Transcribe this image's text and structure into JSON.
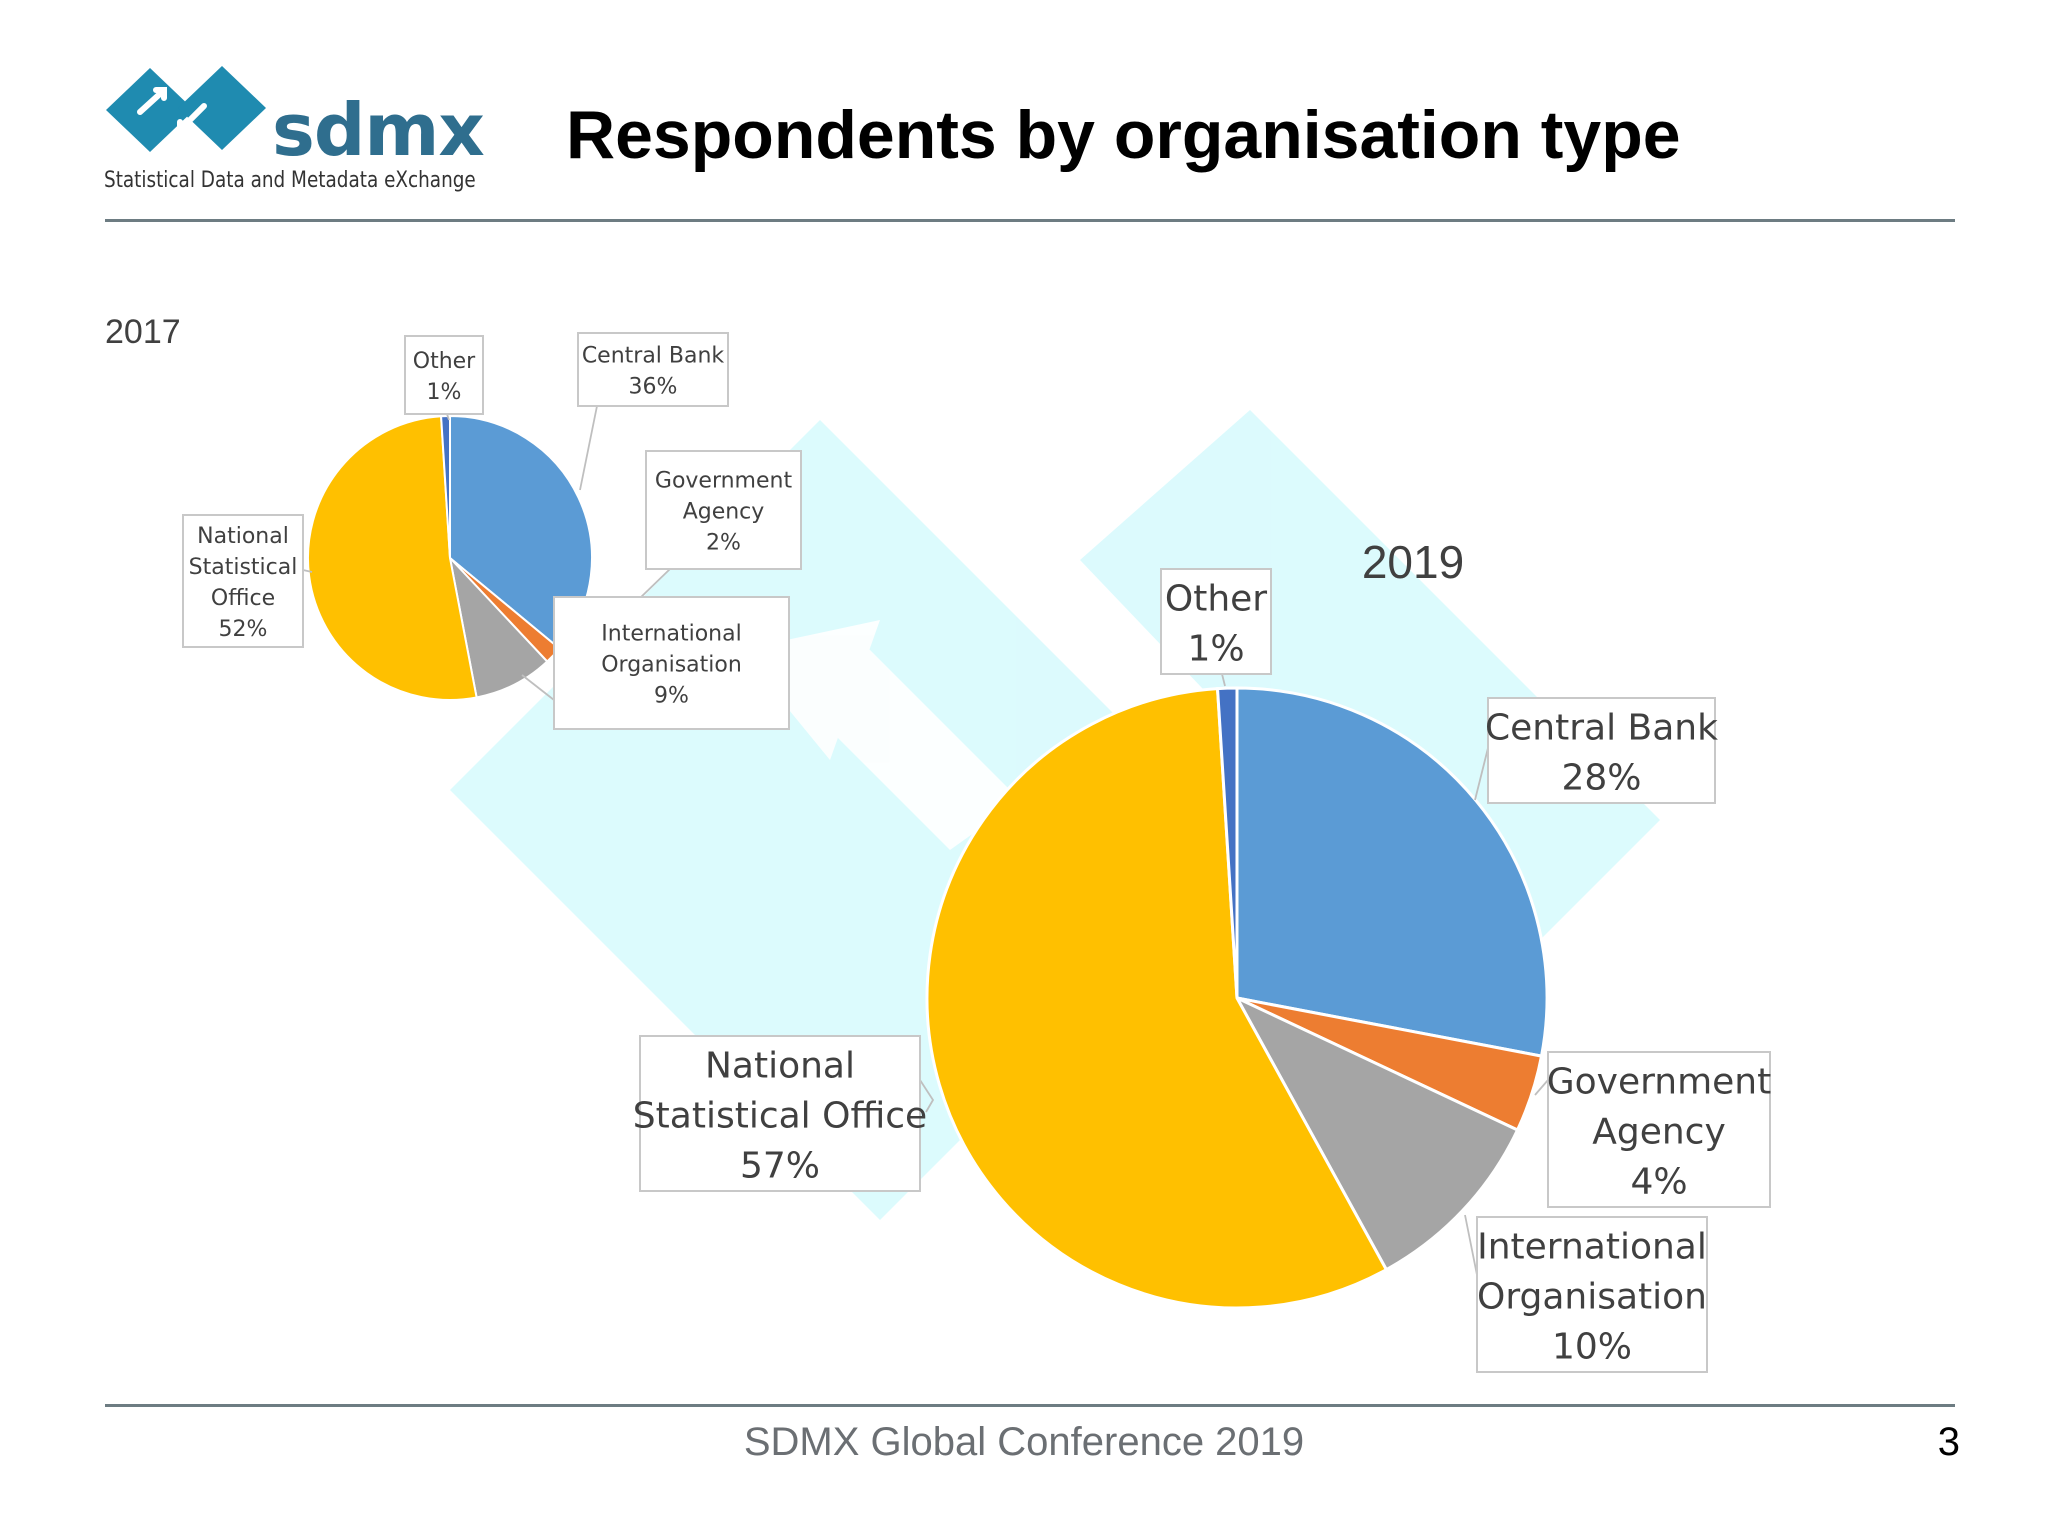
{
  "logo": {
    "name": "sdmx",
    "tagline": "Statistical Data and Metadata eXchange"
  },
  "title": "Respondents by organisation type",
  "footer": {
    "text": "SDMX Global Conference 2019",
    "page_number": "3"
  },
  "colors": {
    "central_bank": "#5b9bd5",
    "government_agency": "#ed7d31",
    "international_organisation": "#a5a5a5",
    "national_statistical_office": "#ffc000",
    "other": "#4472c4",
    "rule": "#6d7c82",
    "watermark": "#d6fafd"
  },
  "chart_data": [
    {
      "type": "pie",
      "title": "2017",
      "slices": [
        {
          "label": [
            "Central Bank"
          ],
          "value": 36,
          "value_label": "36%",
          "color": "#5b9bd5"
        },
        {
          "label": [
            "Government",
            "Agency"
          ],
          "value": 2,
          "value_label": "2%",
          "color": "#ed7d31"
        },
        {
          "label": [
            "International",
            "Organisation"
          ],
          "value": 9,
          "value_label": "9%",
          "color": "#a5a5a5"
        },
        {
          "label": [
            "National",
            "Statistical",
            "Office"
          ],
          "value": 52,
          "value_label": "52%",
          "color": "#ffc000"
        },
        {
          "label": [
            "Other"
          ],
          "value": 1,
          "value_label": "1%",
          "color": "#4472c4"
        }
      ]
    },
    {
      "type": "pie",
      "title": "2019",
      "slices": [
        {
          "label": [
            "Central Bank"
          ],
          "value": 28,
          "value_label": "28%",
          "color": "#5b9bd5"
        },
        {
          "label": [
            "Government",
            "Agency"
          ],
          "value": 4,
          "value_label": "4%",
          "color": "#ed7d31"
        },
        {
          "label": [
            "International",
            "Organisation"
          ],
          "value": 10,
          "value_label": "10%",
          "color": "#a5a5a5"
        },
        {
          "label": [
            "National",
            "Statistical Office"
          ],
          "value": 57,
          "value_label": "57%",
          "color": "#ffc000"
        },
        {
          "label": [
            "Other"
          ],
          "value": 1,
          "value_label": "1%",
          "color": "#4472c4"
        }
      ]
    }
  ]
}
